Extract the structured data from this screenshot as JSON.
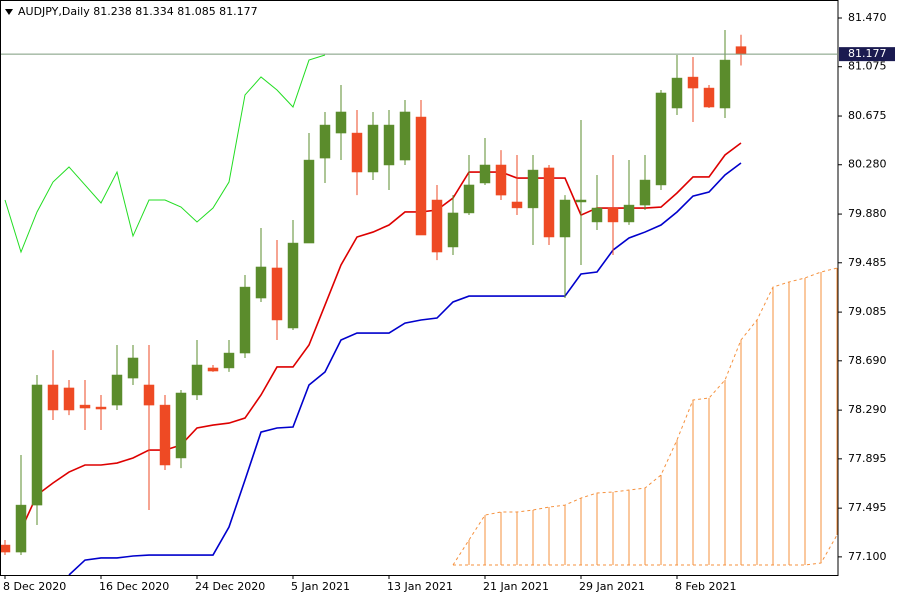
{
  "chart_data": {
    "type": "candlestick",
    "title": "AUDJPY,Daily 81.238 81.334 81.085 81.177",
    "categories": [
      "8 Dec 2020",
      null,
      null,
      null,
      null,
      null,
      "16 Dec 2020",
      null,
      null,
      null,
      null,
      null,
      "24 Dec 2020",
      null,
      null,
      null,
      null,
      null,
      "5 Jan 2021",
      null,
      null,
      null,
      null,
      null,
      "13 Jan 2021",
      null,
      null,
      null,
      null,
      null,
      "21 Jan 2021",
      null,
      null,
      null,
      null,
      null,
      "29 Jan 2021",
      null,
      null,
      null,
      null,
      null,
      "8 Feb 2021",
      null,
      null,
      null,
      null,
      null,
      null,
      null,
      null,
      null,
      null
    ],
    "open": [
      77.196,
      77.139,
      77.52,
      78.494,
      78.47,
      78.331,
      78.315,
      78.331,
      78.55,
      78.494,
      78.331,
      77.902,
      78.413,
      78.632,
      78.632,
      78.753,
      79.199,
      79.443,
      78.956,
      79.645,
      80.334,
      80.537,
      80.537,
      80.221,
      80.278,
      80.318,
      80.667,
      79.994,
      79.613,
      79.889,
      80.132,
      80.278,
      79.978,
      79.93,
      80.254,
      79.694,
      79.978,
      79.816,
      79.929,
      79.816,
      79.953,
      80.116,
      80.74,
      80.991,
      80.902,
      80.74,
      81.238,
      null,
      null,
      null,
      null,
      null,
      null
    ],
    "high": [
      77.237,
      77.926,
      78.575,
      78.777,
      78.534,
      78.534,
      78.413,
      78.818,
      78.818,
      78.818,
      78.413,
      78.453,
      78.859,
      78.656,
      78.859,
      79.386,
      79.767,
      79.67,
      79.832,
      80.537,
      80.708,
      80.927,
      80.724,
      80.708,
      80.724,
      80.805,
      80.805,
      80.116,
      80.034,
      80.359,
      80.497,
      80.399,
      80.359,
      80.359,
      80.278,
      80.034,
      80.643,
      80.197,
      80.359,
      80.318,
      80.359,
      80.886,
      81.17,
      81.154,
      80.927,
      81.373,
      81.334,
      null,
      null,
      null,
      null,
      null,
      null
    ],
    "low": [
      77.115,
      77.115,
      77.358,
      78.21,
      78.25,
      78.129,
      78.129,
      78.291,
      78.494,
      77.48,
      77.804,
      77.82,
      78.372,
      78.6,
      78.6,
      78.713,
      79.167,
      78.859,
      78.94,
      79.645,
      80.132,
      80.318,
      80.034,
      80.156,
      80.075,
      80.278,
      79.71,
      79.507,
      79.548,
      79.872,
      80.116,
      79.994,
      79.872,
      79.629,
      79.629,
      79.199,
      79.467,
      79.751,
      79.548,
      79.792,
      79.913,
      80.075,
      80.683,
      80.627,
      80.74,
      80.659,
      81.085,
      null,
      null,
      null,
      null,
      null,
      null
    ],
    "close": [
      77.139,
      77.52,
      78.494,
      78.291,
      78.291,
      78.307,
      78.299,
      78.575,
      78.713,
      78.331,
      77.845,
      78.429,
      78.656,
      78.607,
      78.753,
      79.288,
      79.451,
      79.021,
      79.645,
      80.318,
      80.602,
      80.708,
      80.221,
      80.602,
      80.602,
      80.708,
      79.71,
      79.572,
      79.889,
      80.116,
      80.278,
      80.034,
      79.93,
      80.237,
      79.694,
      79.994,
      79.994,
      79.929,
      79.816,
      79.953,
      80.156,
      80.862,
      80.983,
      80.902,
      80.748,
      81.129,
      81.177,
      null,
      null,
      null,
      null,
      null,
      null
    ],
    "up_color": "#5b8c2c",
    "down_color": "#ee4a24",
    "series": [
      {
        "color": "#dd0000",
        "values": [
          null,
          77.318,
          77.602,
          77.699,
          77.788,
          77.845,
          77.845,
          77.861,
          77.902,
          77.966,
          77.966,
          78.007,
          78.145,
          78.169,
          78.185,
          78.226,
          78.413,
          78.64,
          78.64,
          78.818,
          79.142,
          79.467,
          79.694,
          79.734,
          79.791,
          79.897,
          79.897,
          79.913,
          80.01,
          80.221,
          80.221,
          80.221,
          80.172,
          80.172,
          80.172,
          80.172,
          79.872,
          79.929,
          79.929,
          79.929,
          79.929,
          79.937,
          80.051,
          80.181,
          80.181,
          80.359,
          80.456,
          null,
          null,
          null,
          null,
          null,
          null
        ]
      },
      {
        "color": "#0000cc",
        "values": [
          null,
          null,
          null,
          null,
          76.953,
          77.074,
          77.091,
          77.091,
          77.107,
          77.115,
          77.115,
          77.115,
          77.115,
          77.115,
          77.342,
          77.723,
          78.112,
          78.145,
          78.153,
          78.494,
          78.599,
          78.859,
          78.915,
          78.915,
          78.915,
          78.996,
          79.021,
          79.037,
          79.167,
          79.215,
          79.215,
          79.215,
          79.215,
          79.215,
          79.215,
          79.215,
          79.394,
          79.41,
          79.588,
          79.686,
          79.734,
          79.791,
          79.897,
          80.026,
          80.059,
          80.197,
          80.294,
          null,
          null,
          null,
          null,
          null,
          null
        ]
      },
      {
        "color": "#22dd22",
        "values": [
          79.994,
          79.572,
          79.897,
          80.14,
          80.262,
          80.116,
          79.97,
          80.221,
          79.702,
          79.994,
          79.994,
          79.937,
          79.816,
          79.929,
          80.14,
          80.846,
          80.992,
          80.886,
          80.748,
          81.129,
          81.17,
          null,
          null,
          null,
          null,
          null,
          null,
          null,
          null,
          null,
          null,
          null,
          null,
          null,
          null,
          null,
          null,
          null,
          null,
          null,
          null,
          null,
          null,
          null,
          null,
          null,
          null,
          null,
          null,
          null,
          null,
          null,
          null
        ]
      }
    ],
    "cloud": {
      "color": "#f5913e",
      "upper": [
        null,
        null,
        null,
        null,
        null,
        null,
        null,
        null,
        null,
        null,
        null,
        null,
        null,
        null,
        null,
        null,
        null,
        null,
        null,
        null,
        null,
        null,
        null,
        null,
        null,
        null,
        null,
        null,
        77.034,
        77.237,
        77.439,
        77.464,
        77.464,
        77.48,
        77.504,
        77.52,
        77.577,
        77.618,
        77.626,
        77.642,
        77.658,
        77.764,
        78.048,
        78.372,
        78.388,
        78.534,
        78.859,
        79.021,
        79.288,
        79.329,
        79.362,
        79.41,
        79.442
      ],
      "lower": [
        null,
        null,
        null,
        null,
        null,
        null,
        null,
        null,
        null,
        null,
        null,
        null,
        null,
        null,
        null,
        null,
        null,
        null,
        null,
        null,
        null,
        null,
        null,
        null,
        null,
        null,
        null,
        null,
        77.034,
        77.034,
        77.034,
        77.034,
        77.034,
        77.034,
        77.034,
        77.034,
        77.034,
        77.034,
        77.034,
        77.034,
        77.034,
        77.034,
        77.034,
        77.034,
        77.034,
        77.034,
        77.034,
        77.034,
        77.034,
        77.034,
        77.034,
        77.05,
        77.277
      ]
    },
    "last_price": 81.177,
    "last_price_color": "#1a1a50",
    "ylim": [
      76.953,
      81.616
    ],
    "yticks": [
      {
        "value": 81.47,
        "label": "81.470"
      },
      81.075,
      80.675,
      {
        "value": 80.28,
        "label": "80.280"
      },
      {
        "value": 79.88,
        "label": "79.880"
      },
      79.485,
      79.085,
      {
        "value": 78.69,
        "label": "78.690"
      },
      {
        "value": 78.29,
        "label": "78.290"
      },
      77.895,
      77.495,
      {
        "value": 77.1,
        "label": "77.100"
      }
    ]
  }
}
